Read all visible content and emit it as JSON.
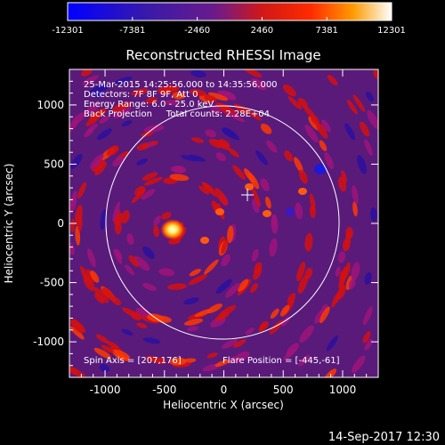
{
  "colorbar": {
    "tick_labels": [
      "-12301",
      "-7381",
      "-2460",
      "2460",
      "7381",
      "12301"
    ],
    "min": -12301,
    "max": 12301
  },
  "plot": {
    "title": "Reconstructed RHESSI Image",
    "info_lines": [
      "25-Mar-2015 14:25:56.000 to 14:35:56.000",
      "Detectors: 7F 8F 9F, Att 0",
      "Energy Range: 6.0 - 25.0 keV",
      "Back Projection     Total counts: 2.28E+04"
    ],
    "spin_axis": "Spin Axis = [207,176]",
    "flare_position": "Flare Position = [-445,-61]",
    "xlabel": "Heliocentric X (arcsec)",
    "ylabel": "Heliocentric Y (arcsec)",
    "x_ticks": [
      "-1000",
      "-500",
      "0",
      "500",
      "1000"
    ],
    "y_ticks": [
      "1000",
      "500",
      "0",
      "-500",
      "-1000"
    ],
    "x_tick_values": [
      -1000,
      -500,
      0,
      500,
      1000
    ],
    "y_tick_values": [
      1000,
      500,
      0,
      -500,
      -1000
    ],
    "xlim": [
      -1300,
      1300
    ],
    "ylim": [
      -1300,
      1300
    ],
    "solar_limb_radius_arcsec": 970,
    "spin_axis_xy": [
      207,
      176
    ],
    "flare_xy": [
      -445,
      -61
    ]
  },
  "footer": {
    "timestamp": "14-Sep-2017 12:30"
  },
  "colors": {
    "background": "#000000",
    "limb": "#ffffff",
    "low": "#0000ff",
    "mid": "#6a1a8c",
    "high": "#ff0000",
    "peak": "#ffffff"
  }
}
